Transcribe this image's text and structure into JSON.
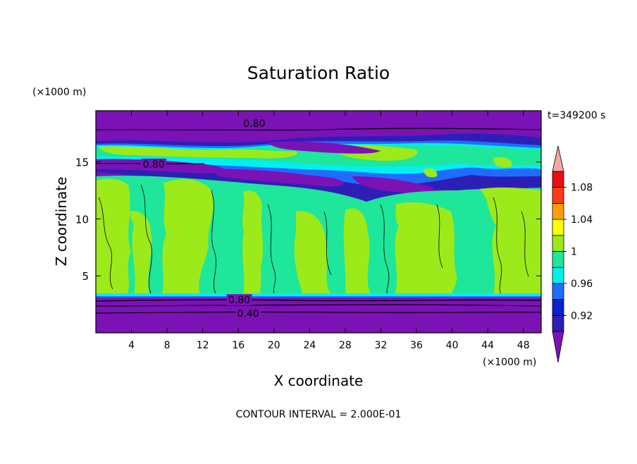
{
  "chart_data": {
    "type": "heatmap",
    "title": "Saturation Ratio",
    "xlabel": "X coordinate",
    "ylabel": "Z coordinate",
    "x_unit": "(×1000 m)",
    "y_unit": "(×1000 m)",
    "time_label": "t=349200 s",
    "footer": "CONTOUR INTERVAL = 2.000E-01",
    "xlim": [
      0,
      50
    ],
    "ylim": [
      0,
      19.5
    ],
    "x_ticks": [
      4,
      8,
      12,
      16,
      20,
      24,
      28,
      32,
      36,
      40,
      44,
      48
    ],
    "y_ticks": [
      5,
      10,
      15
    ],
    "colorbar": {
      "levels": [
        0.9,
        0.92,
        0.94,
        0.96,
        0.98,
        1.0,
        1.02,
        1.04,
        1.06,
        1.08,
        1.1
      ],
      "labeled_levels": [
        "0.92",
        "0.96",
        "1",
        "1.04",
        "1.08"
      ],
      "colors": [
        "#7b12b6",
        "#2d1fb5",
        "#0a22cc",
        "#1f6cff",
        "#00f0f0",
        "#1ee69a",
        "#9cea1a",
        "#ffff00",
        "#ff9e00",
        "#ff3c14",
        "#eb0f0f",
        "#f4a6a6"
      ],
      "under_color": "#7b12b6",
      "over_color": "#f4a6a6"
    },
    "contour_labels": [
      {
        "text": "0.80",
        "x": 17.8,
        "z": 18.4
      },
      {
        "text": "0.80",
        "x": 6.5,
        "z": 14.8
      },
      {
        "text": "0.80",
        "x": 16.1,
        "z": 2.9
      },
      {
        "text": "0.40",
        "x": 17.1,
        "z": 1.7
      }
    ]
  }
}
